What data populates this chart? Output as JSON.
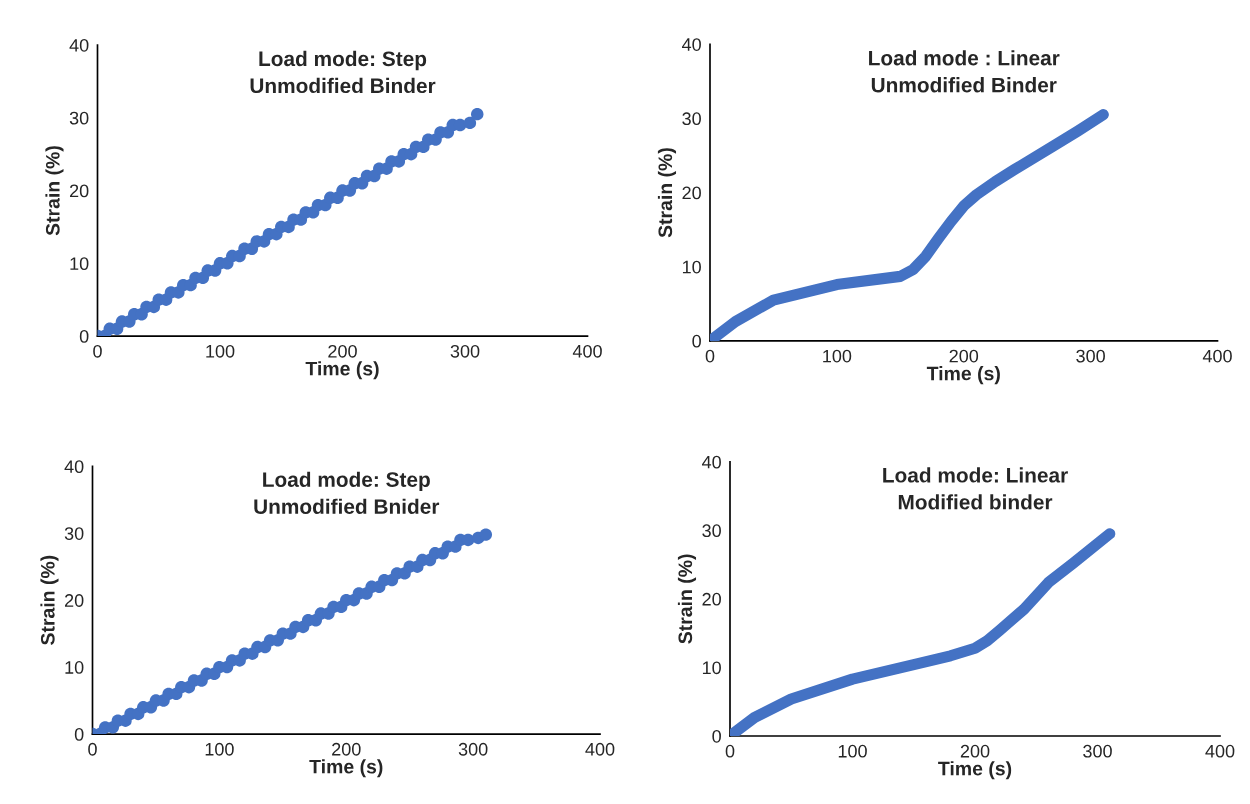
{
  "chart_data": [
    {
      "type": "scatter",
      "title": "Load mode: Step\nUnmodified Binder",
      "xlabel": "Time (s)",
      "ylabel": "Strain (%)",
      "xlim": [
        0,
        400
      ],
      "ylim": [
        0,
        40
      ],
      "xticks": [
        0,
        100,
        200,
        300,
        400
      ],
      "yticks": [
        0,
        10,
        20,
        30,
        40
      ],
      "grid": false,
      "marker": "circle",
      "series": [
        {
          "color": "#4472c4",
          "x": [
            0,
            6,
            10,
            16,
            20,
            26,
            30,
            36,
            40,
            46,
            50,
            56,
            60,
            66,
            70,
            76,
            80,
            86,
            90,
            96,
            100,
            106,
            110,
            116,
            120,
            126,
            130,
            136,
            140,
            146,
            150,
            156,
            160,
            166,
            170,
            176,
            180,
            186,
            190,
            196,
            200,
            206,
            210,
            216,
            220,
            226,
            230,
            236,
            240,
            246,
            250,
            256,
            260,
            266,
            270,
            276,
            280,
            286,
            290,
            296,
            304,
            310
          ],
          "values": [
            0,
            0,
            1,
            1,
            2,
            2,
            3,
            3,
            4,
            4,
            5,
            5,
            6,
            6,
            7,
            7,
            8,
            8,
            9,
            9,
            10,
            10,
            11,
            11,
            12,
            12,
            13,
            13,
            14,
            14,
            15,
            15,
            16,
            16,
            17,
            17,
            18,
            18,
            19,
            19,
            20,
            20,
            21,
            21,
            22,
            22,
            23,
            23,
            24,
            24,
            25,
            25,
            26,
            26,
            27,
            27,
            28,
            28,
            29,
            29,
            29.3,
            30.5
          ]
        }
      ]
    },
    {
      "type": "line",
      "title": "Load mode : Linear\nUnmodified Binder",
      "xlabel": "Time (s)",
      "ylabel": "Strain (%)",
      "xlim": [
        0,
        400
      ],
      "ylim": [
        0,
        40
      ],
      "xticks": [
        0,
        100,
        200,
        300,
        400
      ],
      "yticks": [
        0,
        10,
        20,
        30,
        40
      ],
      "grid": false,
      "marker": "none",
      "series": [
        {
          "color": "#4472c4",
          "x": [
            0,
            20,
            50,
            100,
            150,
            160,
            170,
            180,
            190,
            200,
            210,
            225,
            240,
            270,
            290,
            310
          ],
          "values": [
            0,
            2.6,
            5.5,
            7.6,
            8.7,
            9.6,
            11.4,
            13.8,
            16.1,
            18.2,
            19.7,
            21.5,
            23.1,
            26.2,
            28.3,
            30.5
          ]
        }
      ]
    },
    {
      "type": "scatter",
      "title": "Load mode: Step\nUnmodified Bnider",
      "xlabel": "Time (s)",
      "ylabel": "Strain (%)",
      "xlim": [
        0,
        400
      ],
      "ylim": [
        0,
        40
      ],
      "xticks": [
        0,
        100,
        200,
        300,
        400
      ],
      "yticks": [
        0,
        10,
        20,
        30,
        40
      ],
      "grid": false,
      "marker": "circle",
      "series": [
        {
          "color": "#4472c4",
          "x": [
            0,
            6,
            10,
            16,
            20,
            26,
            30,
            36,
            40,
            46,
            50,
            56,
            60,
            66,
            70,
            76,
            80,
            86,
            90,
            96,
            100,
            106,
            110,
            116,
            120,
            126,
            130,
            136,
            140,
            146,
            150,
            156,
            160,
            166,
            170,
            176,
            180,
            186,
            190,
            196,
            200,
            206,
            210,
            216,
            220,
            226,
            230,
            236,
            240,
            246,
            250,
            256,
            260,
            266,
            270,
            276,
            280,
            286,
            290,
            296,
            304,
            310
          ],
          "values": [
            0,
            0,
            1,
            1,
            2,
            2,
            3,
            3,
            4,
            4,
            5,
            5,
            6,
            6,
            7,
            7,
            8,
            8,
            9,
            9,
            10,
            10,
            11,
            11,
            12,
            12,
            13,
            13,
            14,
            14,
            15,
            15,
            16,
            16,
            17,
            17,
            18,
            18,
            19,
            19,
            20,
            20,
            21,
            21,
            22,
            22,
            23,
            23,
            24,
            24,
            25,
            25,
            26,
            26,
            27,
            27,
            28,
            28,
            29,
            29,
            29.3,
            29.8
          ]
        }
      ]
    },
    {
      "type": "line",
      "title": "Load mode: Linear\nModified binder",
      "xlabel": "Time (s)",
      "ylabel": "Strain (%)",
      "xlim": [
        0,
        400
      ],
      "ylim": [
        0,
        40
      ],
      "xticks": [
        0,
        100,
        200,
        300,
        400
      ],
      "yticks": [
        0,
        10,
        20,
        30,
        40
      ],
      "grid": false,
      "marker": "none",
      "series": [
        {
          "color": "#4472c4",
          "x": [
            0,
            20,
            50,
            100,
            150,
            180,
            200,
            210,
            220,
            240,
            260,
            280,
            310
          ],
          "values": [
            0,
            2.7,
            5.4,
            8.3,
            10.4,
            11.7,
            12.8,
            13.9,
            15.4,
            18.5,
            22.4,
            25.2,
            29.5
          ]
        }
      ]
    }
  ]
}
